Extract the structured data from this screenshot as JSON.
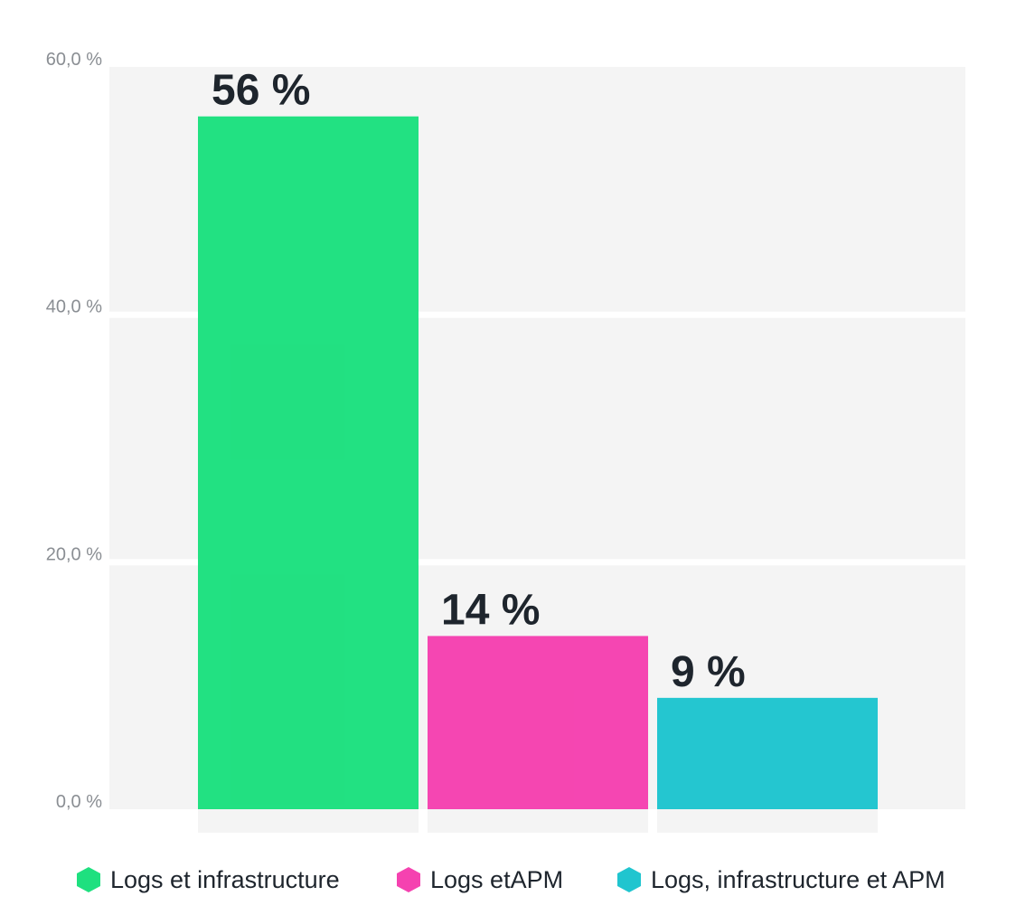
{
  "chart_data": {
    "type": "bar",
    "title": "",
    "xlabel": "",
    "ylabel": "",
    "categories": [
      "Logs et infrastructure",
      "Logs etAPM",
      "Logs, infrastructure et APM"
    ],
    "values": [
      56,
      14,
      9
    ],
    "data_labels": [
      "56 %",
      "14 %",
      "9 %"
    ],
    "colors": [
      "#1ee07f",
      "#f542b0",
      "#20c5cf"
    ],
    "ylim": [
      0,
      60
    ],
    "yticks": [
      0,
      20,
      40,
      60
    ],
    "ytick_labels": [
      "0,0 %",
      "20,0 %",
      "40,0 %",
      "60,0 %"
    ],
    "grid": true,
    "legend": {
      "position": "bottom",
      "entries": [
        {
          "label": "Logs et infrastructure",
          "color": "#1ee07f",
          "marker": "hexagon"
        },
        {
          "label": "Logs etAPM",
          "color": "#f542b0",
          "marker": "hexagon"
        },
        {
          "label": "Logs, infrastructure et APM",
          "color": "#20c5cf",
          "marker": "hexagon"
        }
      ]
    }
  }
}
